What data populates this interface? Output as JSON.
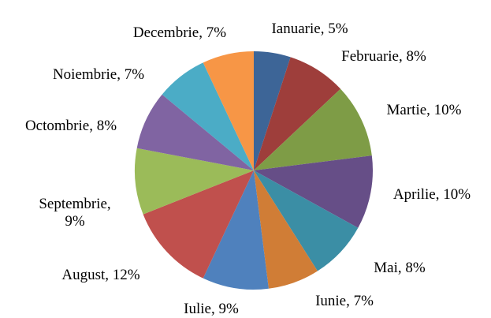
{
  "chart_data": {
    "type": "pie",
    "categories": [
      "Ianuarie",
      "Februarie",
      "Martie",
      "Aprilie",
      "Mai",
      "Iunie",
      "Iulie",
      "August",
      "Septembrie",
      "Octombrie",
      "Noiembrie",
      "Decembrie"
    ],
    "values": [
      5,
      8,
      10,
      10,
      8,
      7,
      9,
      12,
      9,
      8,
      7,
      7
    ],
    "value_labels": [
      "Ianuarie, 5%",
      "Februarie, 8%",
      "Martie, 10%",
      "Aprilie, 10%",
      "Mai, 8%",
      "Iunie, 7%",
      "Iulie, 9%",
      "August, 12%",
      "Septembrie, 9%",
      "Octombrie, 8%",
      "Noiembrie, 7%",
      "Decembrie, 7%"
    ],
    "colors": [
      "#3d6597",
      "#9e3e3b",
      "#7e9c46",
      "#664e87",
      "#3b8ea5",
      "#d07d36",
      "#4f81bd",
      "#c0504d",
      "#9bbb59",
      "#8064a2",
      "#4bacc6",
      "#f79646"
    ]
  }
}
